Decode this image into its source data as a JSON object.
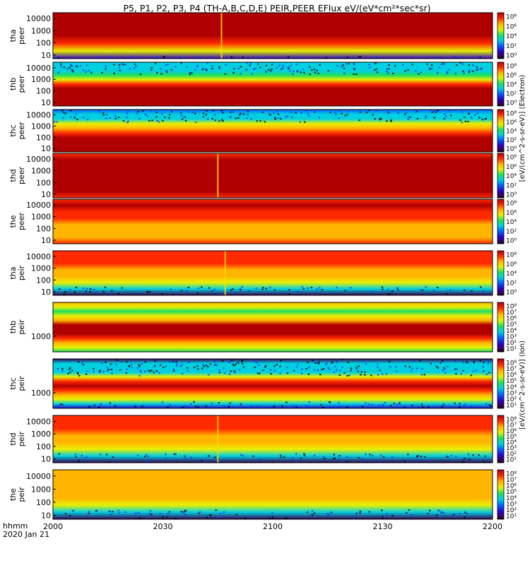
{
  "chart_data": {
    "type": "heatmap",
    "title": "P5, P1, P2, P3, P4 (TH-A,B,C,D,E) PEIR,PEER EFlux eV/(eV*cm²*sec*sr)",
    "x": {
      "ticks": [
        "2000",
        "2030",
        "2100",
        "2130",
        "2200"
      ],
      "range_hhmm": [
        "2000",
        "2200"
      ],
      "label_line1": "hhmm",
      "label_line2": "2020 Jan 21"
    },
    "colorbar_ticks": {
      "tall": [
        "10⁸",
        "10⁷",
        "10⁶",
        "10⁵",
        "10⁴",
        "10³",
        "10²",
        "10¹"
      ],
      "short": [
        "10⁸",
        "10⁶",
        "10⁴",
        "10²",
        "10⁰"
      ]
    },
    "panels": [
      {
        "probe": "tha",
        "species": "peer",
        "yticks": [
          "10000",
          "1000",
          "100",
          "10"
        ],
        "ylim_eV": [
          5,
          30000
        ],
        "yscale": "log",
        "profile": [
          0.08,
          0.55,
          0.82,
          0.92,
          0.93,
          0.93,
          0.92
        ],
        "event": {
          "time_hhmm": "2046"
        },
        "note": "red/dark-red band, green near 10 eV"
      },
      {
        "probe": "thb",
        "species": "peer",
        "yticks": [
          "10000",
          "1000",
          "100",
          "10"
        ],
        "ylim_eV": [
          5,
          30000
        ],
        "yscale": "log",
        "profile": [
          0.99,
          0.99,
          0.99,
          0.96,
          0.9,
          0.8,
          0.6,
          0.42,
          0.4,
          0.36,
          0.34
        ],
        "note": "dark-red low energies, cyan/green high energies"
      },
      {
        "probe": "thc",
        "species": "peer",
        "yticks": [
          "10000",
          "1000",
          "100",
          "10"
        ],
        "ylim_eV": [
          5,
          30000
        ],
        "yscale": "log",
        "profile": [
          0.99,
          0.99,
          0.97,
          0.92,
          0.85,
          0.74,
          0.55,
          0.35,
          0.3,
          0.25
        ],
        "note": "dark-red low energies, blue/cyan noisy top"
      },
      {
        "probe": "thd",
        "species": "peer",
        "yticks": [
          "10000",
          "1000",
          "100",
          "10"
        ],
        "ylim_eV": [
          5,
          30000
        ],
        "yscale": "log",
        "profile": [
          0.84,
          0.9,
          0.93,
          0.93,
          0.92,
          0.92,
          0.9,
          0.88
        ],
        "event": {
          "time_hhmm": "2045"
        },
        "note": "red band with dip at event"
      },
      {
        "probe": "the",
        "species": "peer",
        "yticks": [
          "10000",
          "1000",
          "100",
          "10"
        ],
        "ylim_eV": [
          5,
          30000
        ],
        "yscale": "log",
        "profile": [
          0.82,
          0.72,
          0.7,
          0.72,
          0.8,
          0.86,
          0.9,
          0.88
        ],
        "note": "orange/yellow low energies, red high energies"
      },
      {
        "probe": "tha",
        "species": "peir",
        "yticks": [
          "10000",
          "1000",
          "100",
          "10"
        ],
        "ylim_eV": [
          5,
          30000
        ],
        "yscale": "log",
        "profile": [
          0.05,
          0.35,
          0.55,
          0.7,
          0.76,
          0.8,
          0.82,
          0.8
        ],
        "event": {
          "time_hhmm": "2047"
        },
        "note": "green/noisy low energies, orange high"
      },
      {
        "probe": "thb",
        "species": "peir",
        "yticks": [
          "1000"
        ],
        "ylim_eV": [
          250,
          20000
        ],
        "yscale": "log",
        "profile": [
          0.45,
          0.55,
          0.72,
          0.85,
          0.95,
          0.99,
          0.9,
          0.72,
          0.55,
          0.5,
          0.55,
          0.65
        ],
        "note": "dark-red band near 1000 eV"
      },
      {
        "probe": "thc",
        "species": "peir",
        "yticks": [
          "1000"
        ],
        "ylim_eV": [
          250,
          20000
        ],
        "yscale": "log",
        "profile": [
          0.1,
          0.35,
          0.55,
          0.75,
          0.88,
          0.9,
          0.82,
          0.55,
          0.38,
          0.36,
          0.3,
          0.05
        ],
        "note": "red band, cyan/blue noisy top and bottom"
      },
      {
        "probe": "thd",
        "species": "peir",
        "yticks": [
          "10000",
          "1000",
          "100",
          "10"
        ],
        "ylim_eV": [
          5,
          30000
        ],
        "yscale": "log",
        "profile": [
          0.05,
          0.35,
          0.55,
          0.68,
          0.74,
          0.78,
          0.8,
          0.78
        ],
        "event": {
          "time_hhmm": "2045"
        },
        "note": "green/noisy low energies, orange high"
      },
      {
        "probe": "the",
        "species": "peir",
        "yticks": [
          "10000",
          "1000",
          "100",
          "10"
        ],
        "ylim_eV": [
          5,
          30000
        ],
        "yscale": "log",
        "profile": [
          0.05,
          0.4,
          0.58,
          0.65,
          0.68,
          0.68,
          0.68,
          0.66
        ],
        "note": "yellow/orange, green/noisy low energies"
      }
    ]
  },
  "colorbar_unit_peer": "[eV/(cm^2-s-sr-eV)] (Electron)",
  "colorbar_unit_peir": "[eV/(cm^2-s-sr-eV)] (Ion)"
}
